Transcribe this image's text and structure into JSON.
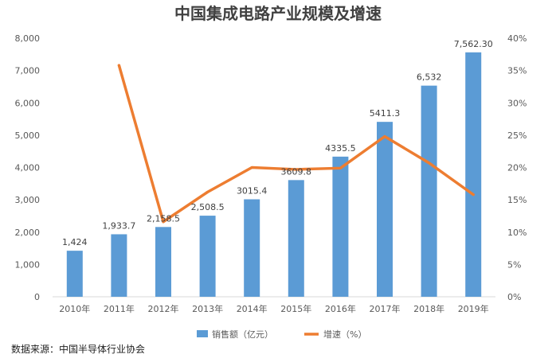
{
  "chart_data": {
    "type": "bar",
    "title": "中国集成电路产业规模及增速",
    "categories": [
      "2010年",
      "2011年",
      "2012年",
      "2013年",
      "2014年",
      "2015年",
      "2016年",
      "2017年",
      "2018年",
      "2019年"
    ],
    "series": [
      {
        "name": "销售额（亿元）",
        "type": "bar",
        "axis": "left",
        "color": "#5B9BD5",
        "values": [
          1424,
          1933.7,
          2158.5,
          2508.5,
          3015.4,
          3609.8,
          4335.5,
          5411.3,
          6532,
          7562.3
        ],
        "labels": [
          "1,424",
          "1,933.7",
          "2,158.5",
          "2,508.5",
          "3015.4",
          "3609.8",
          "4335.5",
          "5411.3",
          "6,532",
          "7,562.30"
        ]
      },
      {
        "name": "增速（%）",
        "type": "line",
        "axis": "right",
        "color": "#ED7D31",
        "values": [
          null,
          35.8,
          11.6,
          16.2,
          20.0,
          19.7,
          19.9,
          24.8,
          20.7,
          15.8
        ]
      }
    ],
    "y_left": {
      "min": 0,
      "max": 8000,
      "ticks": [
        "0",
        "1,000",
        "2,000",
        "3,000",
        "4,000",
        "5,000",
        "6,000",
        "7,000",
        "8,000"
      ]
    },
    "y_right": {
      "min": 0,
      "max": 40,
      "ticks": [
        "0%",
        "5%",
        "10%",
        "15%",
        "20%",
        "25%",
        "30%",
        "35%",
        "40%"
      ]
    },
    "legend_position": "bottom",
    "grid": false
  },
  "source_note": "数据来源：中国半导体行业协会"
}
